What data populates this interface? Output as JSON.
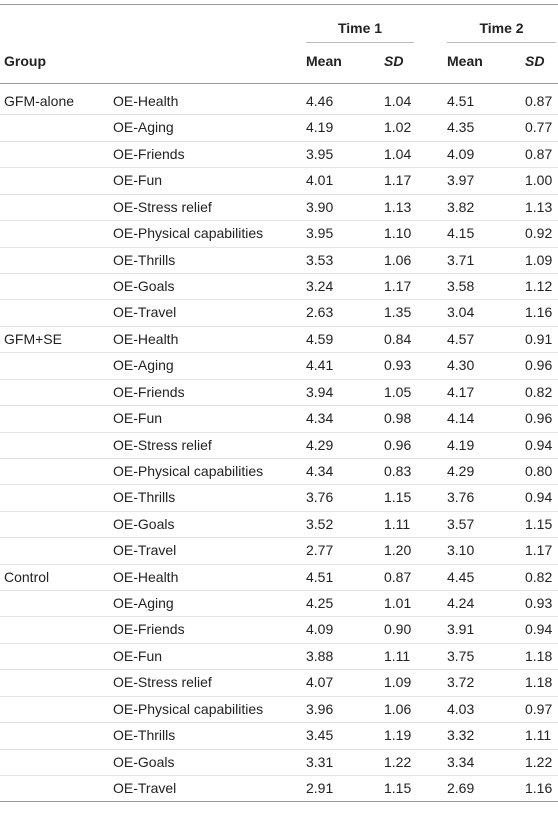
{
  "table": {
    "time_headers": [
      "Time 1",
      "Time 2"
    ],
    "group_header": "Group",
    "subheaders": [
      "Mean",
      "SD",
      "Mean",
      "SD"
    ],
    "groups": [
      {
        "name": "GFM-alone",
        "rows": [
          [
            "OE-Health",
            "4.46",
            "1.04",
            "4.51",
            "0.87"
          ],
          [
            "OE-Aging",
            "4.19",
            "1.02",
            "4.35",
            "0.77"
          ],
          [
            "OE-Friends",
            "3.95",
            "1.04",
            "4.09",
            "0.87"
          ],
          [
            "OE-Fun",
            "4.01",
            "1.17",
            "3.97",
            "1.00"
          ],
          [
            "OE-Stress relief",
            "3.90",
            "1.13",
            "3.82",
            "1.13"
          ],
          [
            "OE-Physical capabilities",
            "3.95",
            "1.10",
            "4.15",
            "0.92"
          ],
          [
            "OE-Thrills",
            "3.53",
            "1.06",
            "3.71",
            "1.09"
          ],
          [
            "OE-Goals",
            "3.24",
            "1.17",
            "3.58",
            "1.12"
          ],
          [
            "OE-Travel",
            "2.63",
            "1.35",
            "3.04",
            "1.16"
          ]
        ]
      },
      {
        "name": "GFM+SE",
        "rows": [
          [
            "OE-Health",
            "4.59",
            "0.84",
            "4.57",
            "0.91"
          ],
          [
            "OE-Aging",
            "4.41",
            "0.93",
            "4.30",
            "0.96"
          ],
          [
            "OE-Friends",
            "3.94",
            "1.05",
            "4.17",
            "0.82"
          ],
          [
            "OE-Fun",
            "4.34",
            "0.98",
            "4.14",
            "0.96"
          ],
          [
            "OE-Stress relief",
            "4.29",
            "0.96",
            "4.19",
            "0.94"
          ],
          [
            "OE-Physical capabilities",
            "4.34",
            "0.83",
            "4.29",
            "0.80"
          ],
          [
            "OE-Thrills",
            "3.76",
            "1.15",
            "3.76",
            "0.94"
          ],
          [
            "OE-Goals",
            "3.52",
            "1.11",
            "3.57",
            "1.15"
          ],
          [
            "OE-Travel",
            "2.77",
            "1.20",
            "3.10",
            "1.17"
          ]
        ]
      },
      {
        "name": "Control",
        "rows": [
          [
            "OE-Health",
            "4.51",
            "0.87",
            "4.45",
            "0.82"
          ],
          [
            "OE-Aging",
            "4.25",
            "1.01",
            "4.24",
            "0.93"
          ],
          [
            "OE-Friends",
            "4.09",
            "0.90",
            "3.91",
            "0.94"
          ],
          [
            "OE-Fun",
            "3.88",
            "1.11",
            "3.75",
            "1.18"
          ],
          [
            "OE-Stress relief",
            "4.07",
            "1.09",
            "3.72",
            "1.18"
          ],
          [
            "OE-Physical capabilities",
            "3.96",
            "1.06",
            "4.03",
            "0.97"
          ],
          [
            "OE-Thrills",
            "3.45",
            "1.19",
            "3.32",
            "1.11"
          ],
          [
            "OE-Goals",
            "3.31",
            "1.22",
            "3.34",
            "1.22"
          ],
          [
            "OE-Travel",
            "2.91",
            "1.15",
            "2.69",
            "1.16"
          ]
        ]
      }
    ]
  }
}
